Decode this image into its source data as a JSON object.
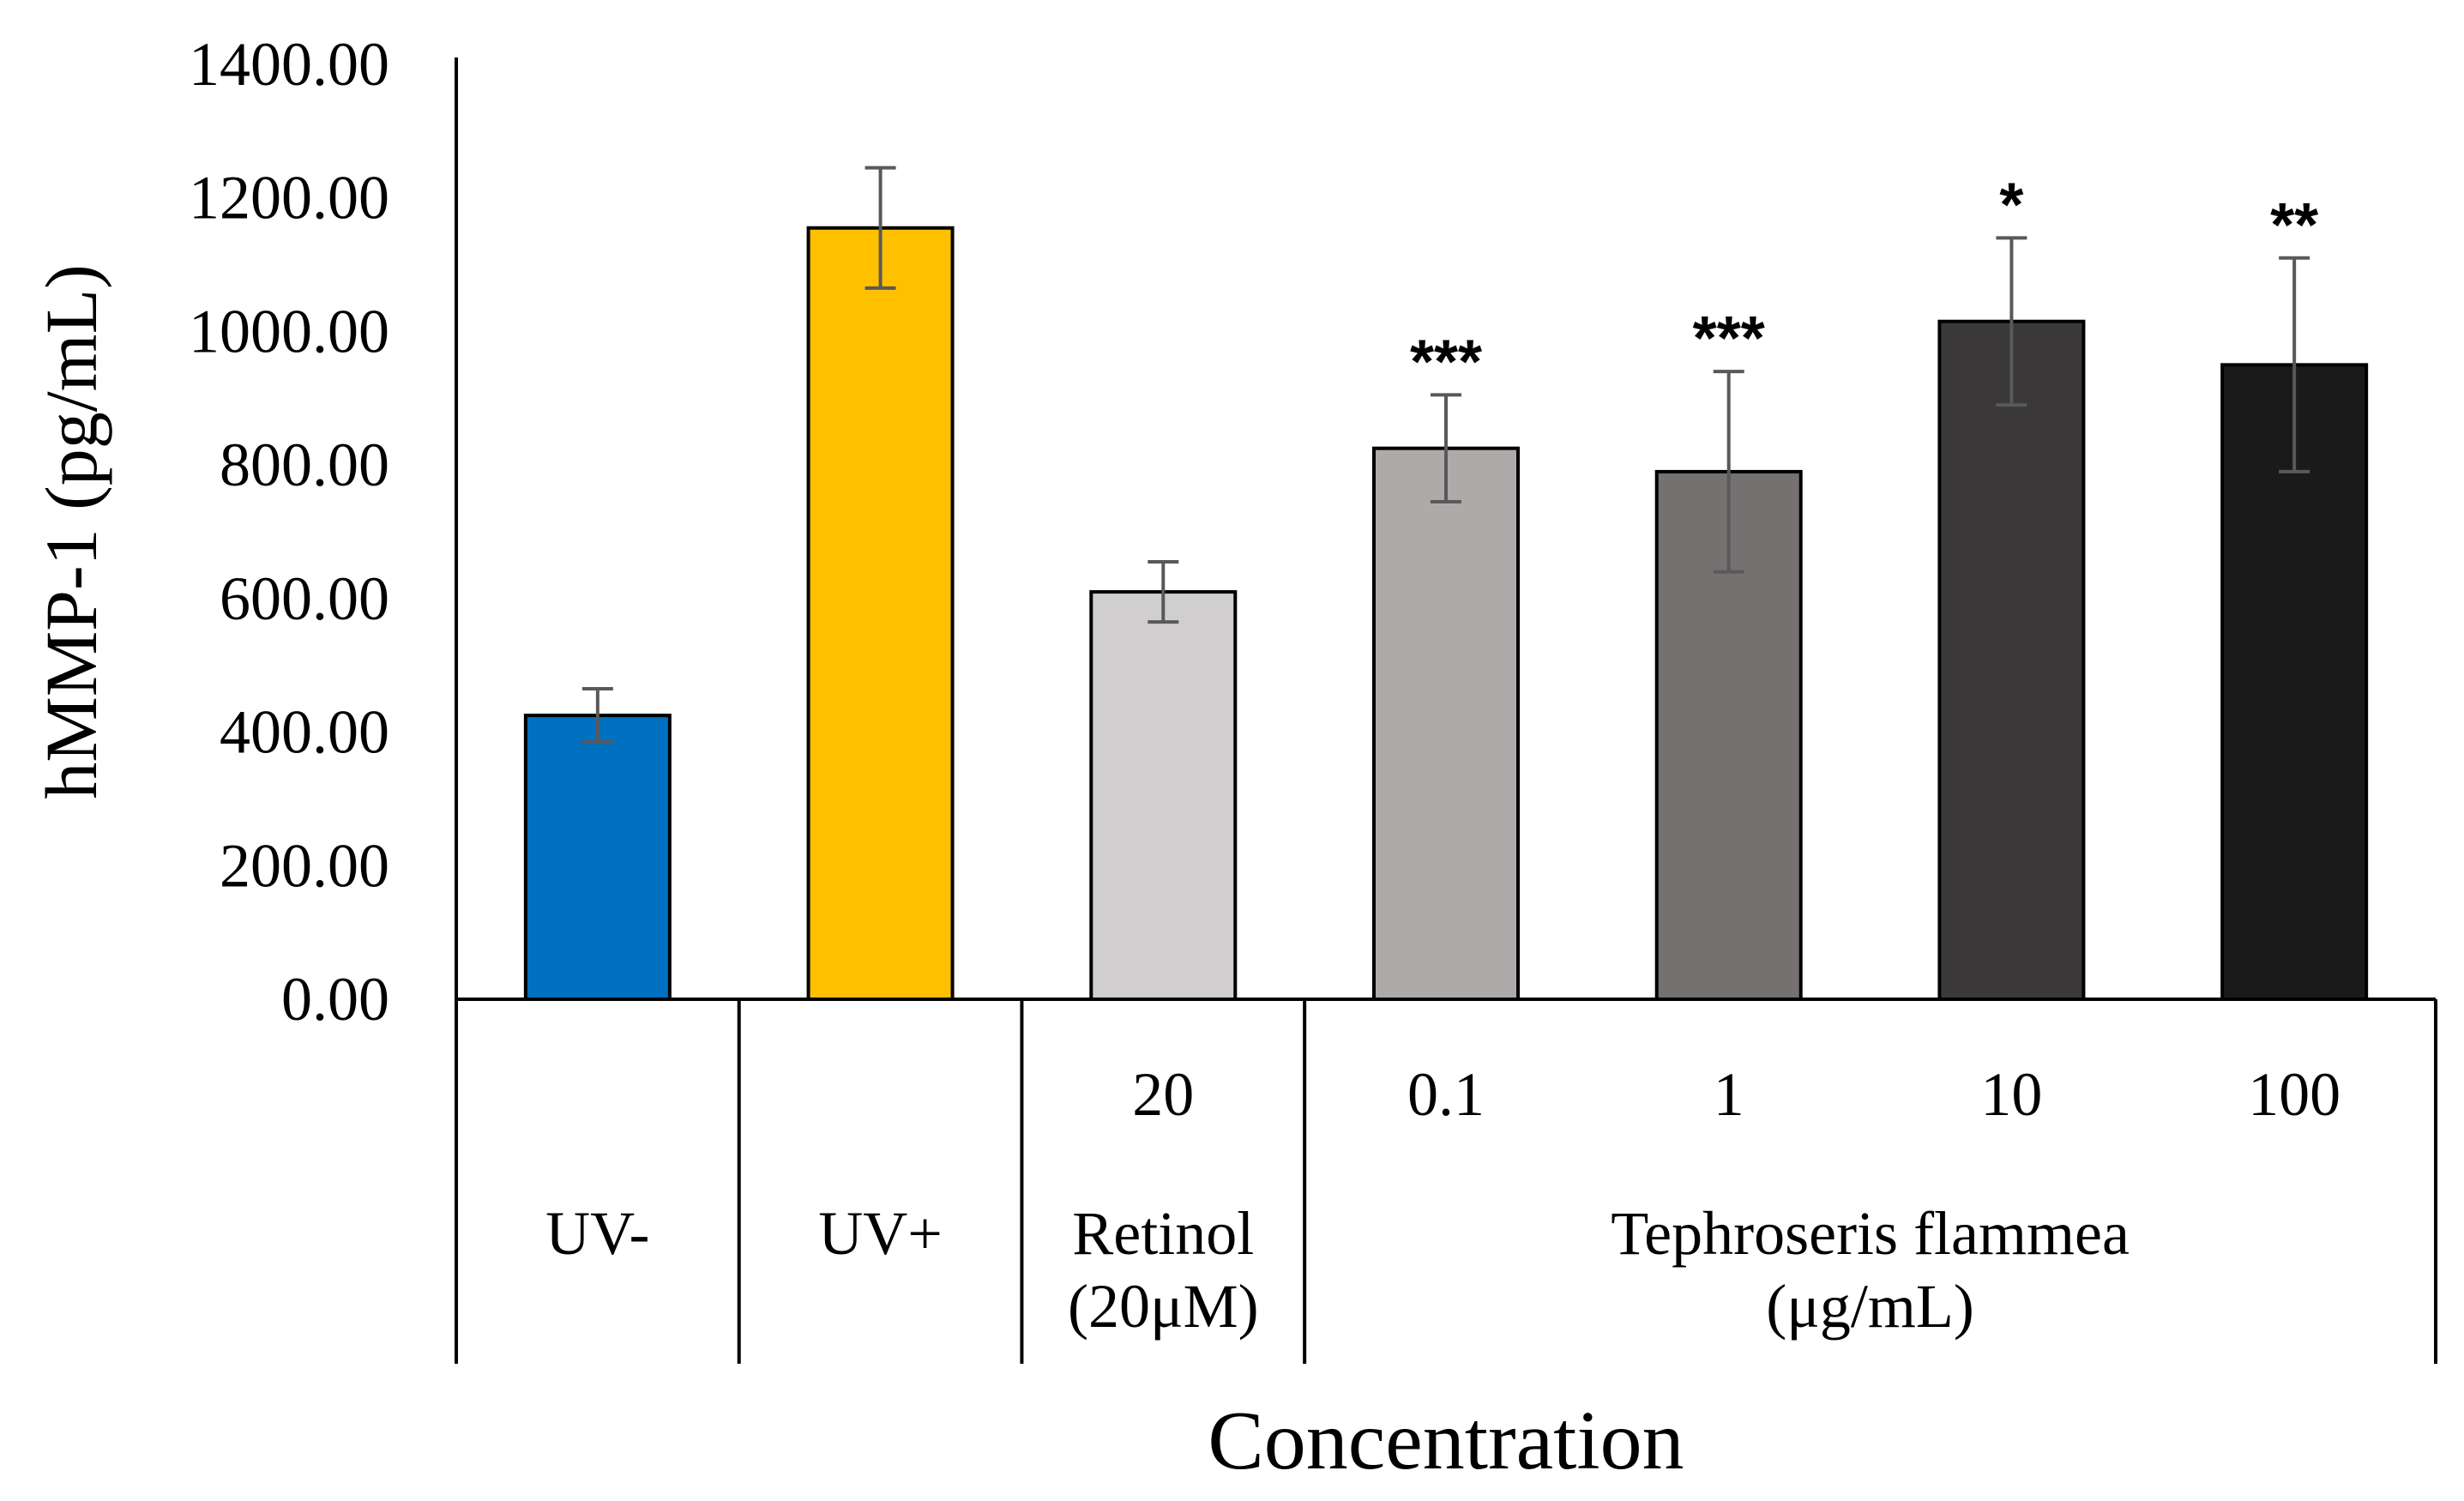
{
  "chart_data": {
    "type": "bar",
    "title": "",
    "xlabel": "Concentration",
    "ylabel": "hMMP-1 (pg/mL)",
    "ylim": [
      0,
      1400
    ],
    "yticks": [
      "0.00",
      "200.00",
      "400.00",
      "600.00",
      "800.00",
      "1000.00",
      "1200.00",
      "1400.00"
    ],
    "grid": false,
    "legend": "none",
    "categories": [
      "UV-",
      "UV+",
      "20",
      "0.1",
      "1",
      "10",
      "100"
    ],
    "values": [
      425,
      1155,
      610,
      825,
      790,
      1015,
      950
    ],
    "errors": [
      40,
      90,
      45,
      80,
      150,
      125,
      160
    ],
    "annotations": [
      "",
      "",
      "",
      "***",
      "***",
      "*",
      "**"
    ],
    "colors": [
      "#0070C0",
      "#FFC000",
      "#D0CECE",
      "#AEAAAA",
      "#767171",
      "#3A3838",
      "#1A1A1A"
    ],
    "groups": [
      {
        "label_lines": [
          "UV-"
        ],
        "start": 0,
        "end": 0
      },
      {
        "label_lines": [
          "UV+"
        ],
        "start": 1,
        "end": 1
      },
      {
        "label_lines": [
          "Retinol",
          "(20μM)"
        ],
        "start": 2,
        "end": 2
      },
      {
        "label_lines": [
          "Tephroseris flammea",
          "(μg/mL)"
        ],
        "start": 3,
        "end": 6
      }
    ]
  }
}
